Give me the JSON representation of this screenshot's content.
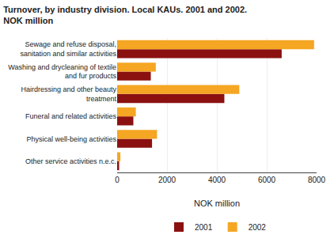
{
  "chart_data": {
    "type": "bar",
    "orientation": "horizontal",
    "title": "Turnover, by industry division. Local KAUs. 2001 and 2002.",
    "subtitle": "NOK million",
    "categories": [
      "Other service activities n.e.c.",
      "Physical well-being activities",
      "Funeral and related activities",
      "Hairdressing and other beauty\ntreatment",
      "Washing and drycleaning of textile\nand fur products",
      "Sewage and refuse disposal,\nsanitation and similar activities"
    ],
    "series": [
      {
        "name": "2001",
        "color": "#8B1111",
        "values": [
          80,
          1400,
          650,
          4300,
          1350,
          6600
        ]
      },
      {
        "name": "2002",
        "color": "#F5A623",
        "values": [
          130,
          1600,
          750,
          4900,
          1550,
          7900
        ]
      }
    ],
    "xlabel": "NOK million",
    "xlim": [
      0,
      8000
    ],
    "xticks": [
      0,
      2000,
      4000,
      6000,
      8000
    ],
    "grid": true,
    "legend": "bottom"
  }
}
